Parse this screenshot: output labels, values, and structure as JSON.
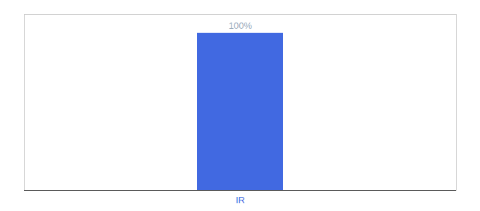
{
  "chart_data": {
    "type": "bar",
    "categories": [
      "IR"
    ],
    "values": [
      100
    ],
    "value_labels": [
      "100%"
    ],
    "color": "#4169E1",
    "ylim": [
      0,
      112
    ],
    "data_labels": true,
    "tick_labels": "x",
    "grid": false
  }
}
